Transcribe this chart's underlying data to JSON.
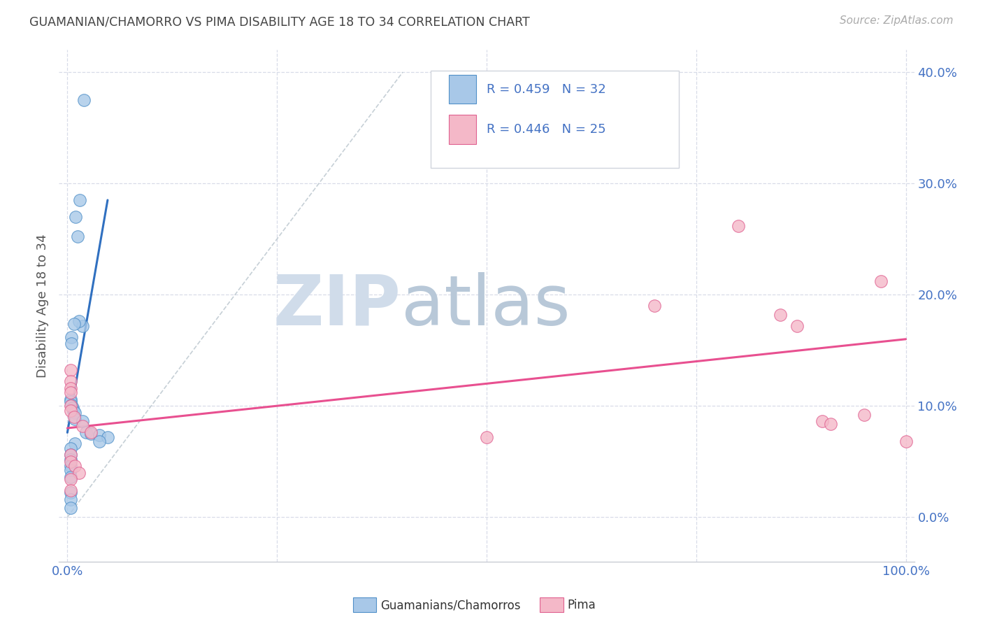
{
  "title": "GUAMANIAN/CHAMORRO VS PIMA DISABILITY AGE 18 TO 34 CORRELATION CHART",
  "source": "Source: ZipAtlas.com",
  "ylabel": "Disability Age 18 to 34",
  "xlim": [
    -0.01,
    1.01
  ],
  "ylim": [
    -0.04,
    0.42
  ],
  "yticks": [
    0.0,
    0.1,
    0.2,
    0.3,
    0.4
  ],
  "ytick_labels": [
    "0.0%",
    "10.0%",
    "20.0%",
    "30.0%",
    "40.0%"
  ],
  "xticks": [
    0.0,
    0.25,
    0.5,
    0.75,
    1.0
  ],
  "xtick_labels": [
    "0.0%",
    "",
    "",
    "",
    "100.0%"
  ],
  "legend_r1": "R = 0.459",
  "legend_n1": "N = 32",
  "legend_r2": "R = 0.446",
  "legend_n2": "N = 25",
  "color_blue": "#a8c8e8",
  "color_pink": "#f4b8c8",
  "color_blue_edge": "#5090c8",
  "color_pink_edge": "#e06090",
  "color_blue_line": "#3070c0",
  "color_pink_line": "#e85090",
  "color_tick": "#4472c4",
  "color_legend_text": "#4472c4",
  "color_title": "#444444",
  "color_source": "#aaaaaa",
  "color_grid": "#d8dce8",
  "color_watermark": "#d0dcea",
  "watermark_zip": "ZIP",
  "watermark_atlas": "atlas",
  "blue_points_x": [
    0.02,
    0.01,
    0.012,
    0.015,
    0.018,
    0.014,
    0.008,
    0.005,
    0.005,
    0.004,
    0.004,
    0.005,
    0.006,
    0.007,
    0.009,
    0.009,
    0.018,
    0.022,
    0.028,
    0.038,
    0.048,
    0.009,
    0.004,
    0.004,
    0.004,
    0.004,
    0.004,
    0.004,
    0.004,
    0.004,
    0.004,
    0.038
  ],
  "blue_points_y": [
    0.375,
    0.27,
    0.252,
    0.285,
    0.172,
    0.176,
    0.174,
    0.162,
    0.156,
    0.106,
    0.104,
    0.101,
    0.098,
    0.096,
    0.094,
    0.088,
    0.086,
    0.076,
    0.075,
    0.074,
    0.072,
    0.066,
    0.062,
    0.056,
    0.052,
    0.046,
    0.042,
    0.036,
    0.022,
    0.016,
    0.008,
    0.068
  ],
  "pink_points_x": [
    0.004,
    0.004,
    0.004,
    0.004,
    0.004,
    0.004,
    0.008,
    0.018,
    0.028,
    0.5,
    0.7,
    0.8,
    0.85,
    0.87,
    0.9,
    0.91,
    0.95,
    0.97,
    1.0,
    0.004,
    0.004,
    0.009,
    0.014,
    0.004,
    0.004
  ],
  "pink_points_y": [
    0.132,
    0.122,
    0.116,
    0.112,
    0.1,
    0.096,
    0.09,
    0.082,
    0.076,
    0.072,
    0.19,
    0.262,
    0.182,
    0.172,
    0.086,
    0.084,
    0.092,
    0.212,
    0.068,
    0.056,
    0.05,
    0.046,
    0.04,
    0.034,
    0.024
  ],
  "blue_trend_x": [
    0.0,
    0.048
  ],
  "blue_trend_y": [
    0.076,
    0.285
  ],
  "pink_trend_x": [
    0.0,
    1.0
  ],
  "pink_trend_y": [
    0.08,
    0.16
  ],
  "ref_line_x": [
    0.0,
    0.4
  ],
  "ref_line_y": [
    0.0,
    0.4
  ]
}
